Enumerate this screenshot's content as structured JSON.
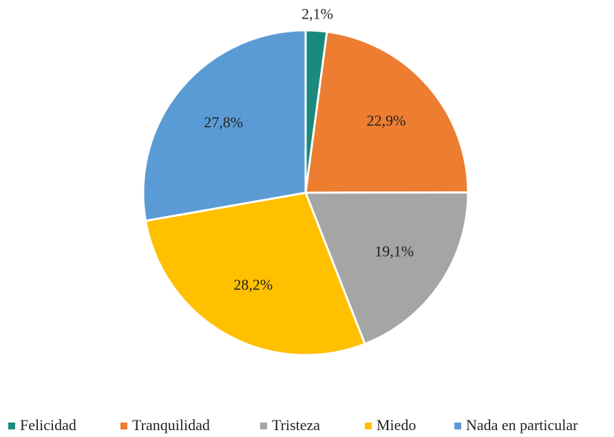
{
  "chart_data": {
    "type": "pie",
    "categories": [
      "Felicidad",
      "Tranquilidad",
      "Tristeza",
      "Miedo",
      "Nada en particular"
    ],
    "values": [
      2.1,
      22.9,
      19.1,
      28.2,
      27.8
    ],
    "value_labels": [
      "2,1%",
      "22,9%",
      "19,1%",
      "28,2%",
      "27,8%"
    ],
    "colors": [
      "#1a8a7e",
      "#ed7d31",
      "#a5a5a5",
      "#ffc000",
      "#5b9bd5"
    ],
    "legend": "bottom"
  }
}
